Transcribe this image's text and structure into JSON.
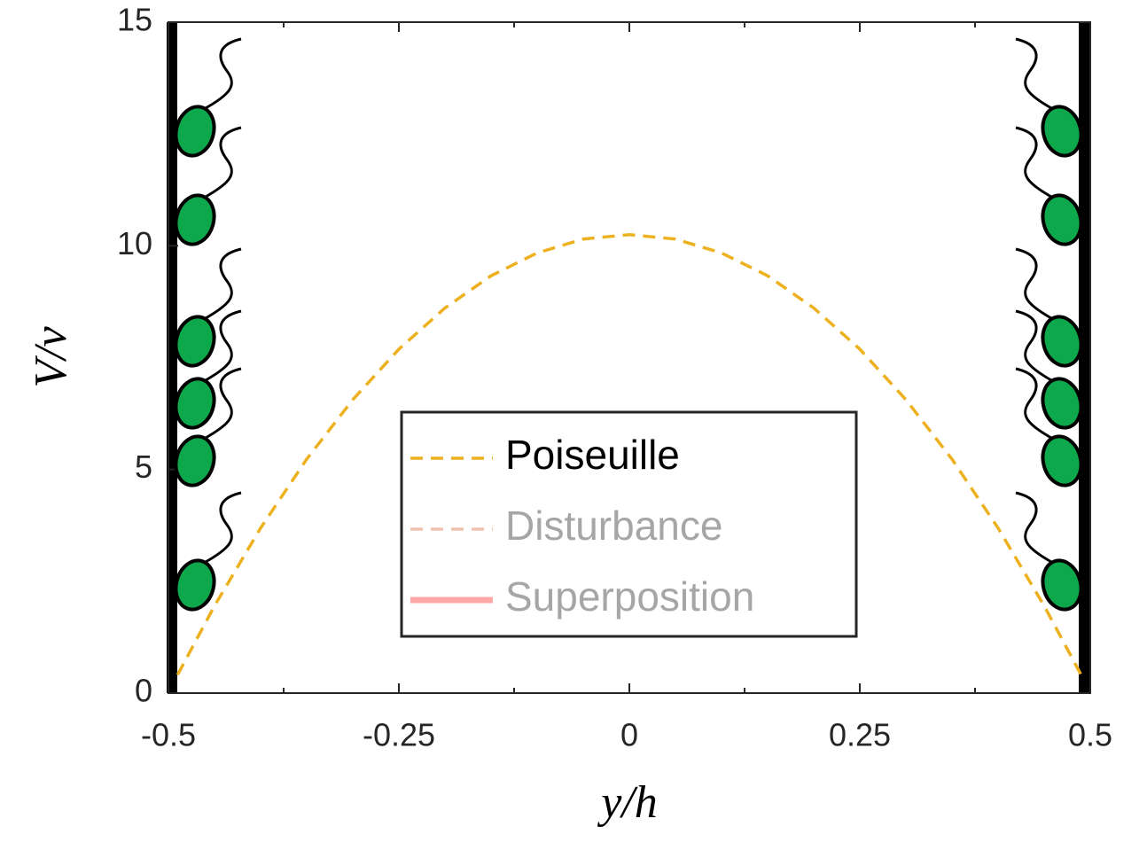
{
  "chart_data": {
    "type": "line",
    "x_label": "y/h",
    "y_label": "V/v",
    "x": [
      -0.49,
      -0.45,
      -0.4,
      -0.35,
      -0.3,
      -0.25,
      -0.2,
      -0.15,
      -0.1,
      -0.05,
      0,
      0.05,
      0.1,
      0.15,
      0.2,
      0.25,
      0.3,
      0.35,
      0.4,
      0.45,
      0.49
    ],
    "series": [
      {
        "name": "Poiseuille",
        "color": "#EDB120",
        "dash": true,
        "values": [
          0.41,
          1.95,
          3.69,
          5.23,
          6.56,
          7.69,
          8.61,
          9.33,
          9.84,
          10.15,
          10.25,
          10.15,
          9.84,
          9.33,
          8.61,
          7.69,
          6.56,
          5.23,
          3.69,
          1.95,
          0.41
        ]
      },
      {
        "name": "Disturbance",
        "color": "#F2C1B0",
        "dash": true,
        "faded": true
      },
      {
        "name": "Superposition",
        "color": "#FFA6A6",
        "dash": false,
        "faded": true
      }
    ],
    "xlim": [
      -0.5,
      0.5
    ],
    "xticks": [
      -0.5,
      -0.25,
      0,
      0.25,
      0.5
    ],
    "xminorticks": [
      -0.375,
      -0.125,
      0.125,
      0.375
    ],
    "ylim": [
      0,
      15
    ],
    "yticks": [
      0,
      5,
      10,
      15
    ],
    "legend": "center-bottom"
  }
}
